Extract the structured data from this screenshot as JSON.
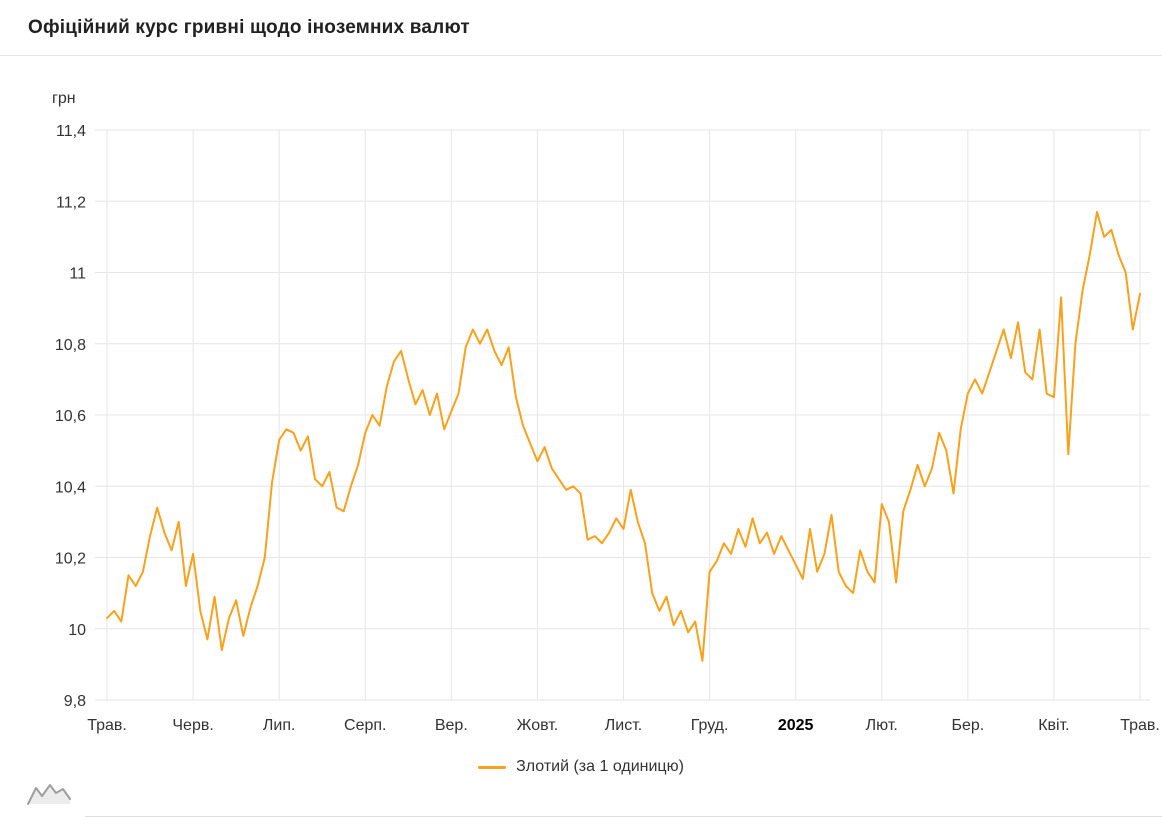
{
  "title": "Офіційний курс гривні щодо іноземних валют",
  "accent_color": "#F9A11B",
  "grid_color": "#e6e6e6",
  "text_color": "#333333",
  "chart_data": {
    "type": "line",
    "title": "Офіційний курс гривні щодо іноземних валют",
    "xlabel": "",
    "ylabel": "грн",
    "ylim": [
      9.8,
      11.4
    ],
    "grid": true,
    "legend_position": "bottom",
    "y_ticks": [
      9.8,
      10,
      10.2,
      10.4,
      10.6,
      10.8,
      11,
      11.2,
      11.4
    ],
    "y_tick_labels": [
      "9,8",
      "10",
      "10,2",
      "10,4",
      "10,6",
      "10,8",
      "11",
      "11,2",
      "11,4"
    ],
    "x_tick_labels": [
      "Трав.",
      "Черв.",
      "Лип.",
      "Серп.",
      "Вер.",
      "Жовт.",
      "Лист.",
      "Груд.",
      "2025",
      "Лют.",
      "Бер.",
      "Квіт.",
      "Трав."
    ],
    "bold_x_tick": "2025",
    "points_per_month": 12,
    "series": [
      {
        "name": "Злотий (за 1 одиницю)",
        "color": "#F9A11B",
        "values": [
          10.03,
          10.05,
          10.02,
          10.15,
          10.12,
          10.16,
          10.26,
          10.34,
          10.27,
          10.22,
          10.3,
          10.12,
          10.21,
          10.05,
          9.97,
          10.09,
          9.94,
          10.03,
          10.08,
          9.98,
          10.06,
          10.12,
          10.2,
          10.41,
          10.53,
          10.56,
          10.55,
          10.5,
          10.54,
          10.42,
          10.4,
          10.44,
          10.34,
          10.33,
          10.4,
          10.46,
          10.55,
          10.6,
          10.57,
          10.68,
          10.75,
          10.78,
          10.7,
          10.63,
          10.67,
          10.6,
          10.66,
          10.56,
          10.61,
          10.66,
          10.79,
          10.84,
          10.8,
          10.84,
          10.78,
          10.74,
          10.79,
          10.65,
          10.57,
          10.52,
          10.47,
          10.51,
          10.45,
          10.42,
          10.39,
          10.4,
          10.38,
          10.25,
          10.26,
          10.24,
          10.27,
          10.31,
          10.28,
          10.39,
          10.3,
          10.24,
          10.1,
          10.05,
          10.09,
          10.01,
          10.05,
          9.99,
          10.02,
          9.91,
          10.16,
          10.19,
          10.24,
          10.21,
          10.28,
          10.23,
          10.31,
          10.24,
          10.27,
          10.21,
          10.26,
          10.22,
          10.18,
          10.14,
          10.28,
          10.16,
          10.21,
          10.32,
          10.16,
          10.12,
          10.1,
          10.22,
          10.16,
          10.13,
          10.35,
          10.3,
          10.13,
          10.33,
          10.39,
          10.46,
          10.4,
          10.45,
          10.55,
          10.5,
          10.38,
          10.56,
          10.66,
          10.7,
          10.66,
          10.72,
          10.78,
          10.84,
          10.76,
          10.86,
          10.72,
          10.7,
          10.84,
          10.66,
          10.65,
          10.93,
          10.49,
          10.8,
          10.95,
          11.05,
          11.17,
          11.1,
          11.12,
          11.05,
          11.0,
          10.84,
          10.94
        ]
      }
    ]
  }
}
